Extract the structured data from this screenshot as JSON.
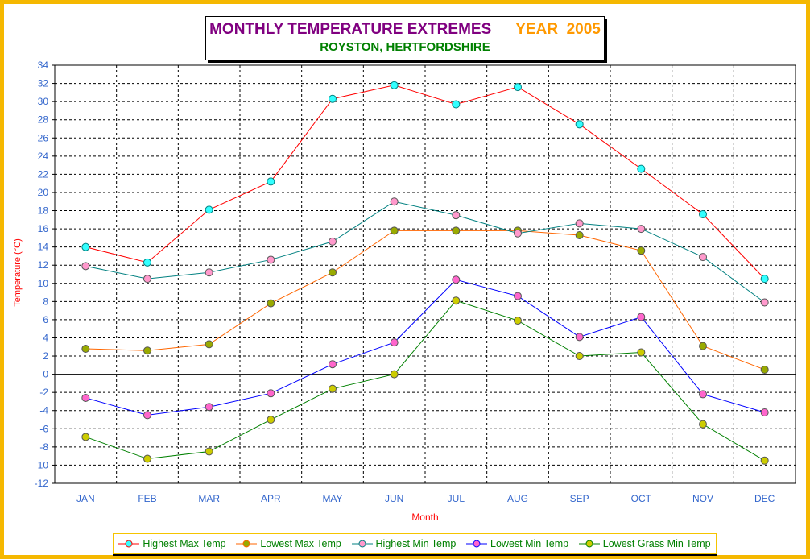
{
  "chart_data": {
    "type": "line",
    "title": "MONTHLY TEMPERATURE EXTREMES",
    "year_label": "YEAR  2005",
    "subtitle": "ROYSTON, HERTFORDSHIRE",
    "xlabel": "Month",
    "ylabel": "Temperature (°C)",
    "ylim": [
      -12,
      34
    ],
    "yticks": [
      34,
      32,
      30,
      28,
      26,
      24,
      22,
      20,
      18,
      16,
      14,
      12,
      10,
      8,
      6,
      4,
      2,
      0,
      -2,
      -4,
      -6,
      -8,
      -10,
      -12
    ],
    "categories": [
      "JAN",
      "FEB",
      "MAR",
      "APR",
      "MAY",
      "JUN",
      "JUL",
      "AUG",
      "SEP",
      "OCT",
      "NOV",
      "DEC"
    ],
    "grid": true,
    "legend_position": "bottom",
    "series": [
      {
        "name": "Highest Max Temp",
        "line": "#ff0000",
        "marker": "#33ffff",
        "values": [
          14.0,
          12.3,
          18.1,
          21.2,
          30.3,
          31.8,
          29.7,
          31.6,
          27.5,
          22.6,
          17.6,
          10.5
        ]
      },
      {
        "name": "Lowest Max Temp",
        "line": "#ff6600",
        "marker": "#99aa00",
        "values": [
          2.8,
          2.6,
          3.3,
          7.8,
          11.2,
          15.8,
          15.8,
          15.8,
          15.3,
          13.6,
          3.1,
          0.5
        ]
      },
      {
        "name": "Highest Min Temp",
        "line": "#008080",
        "marker": "#ff99cc",
        "values": [
          11.9,
          10.5,
          11.2,
          12.6,
          14.6,
          19.0,
          17.5,
          15.5,
          16.6,
          16.0,
          12.9,
          7.9
        ]
      },
      {
        "name": "Lowest Min Temp",
        "line": "#0000ff",
        "marker": "#ff66cc",
        "values": [
          -2.6,
          -4.5,
          -3.6,
          -2.1,
          1.1,
          3.5,
          10.4,
          8.6,
          4.1,
          6.3,
          -2.2,
          -4.2
        ]
      },
      {
        "name": "Lowest Grass Min Temp",
        "line": "#008000",
        "marker": "#cccc00",
        "values": [
          -6.9,
          -9.3,
          -8.5,
          -5.0,
          -1.6,
          0.0,
          8.1,
          5.9,
          2.0,
          2.4,
          -5.5,
          -9.5
        ]
      }
    ]
  }
}
